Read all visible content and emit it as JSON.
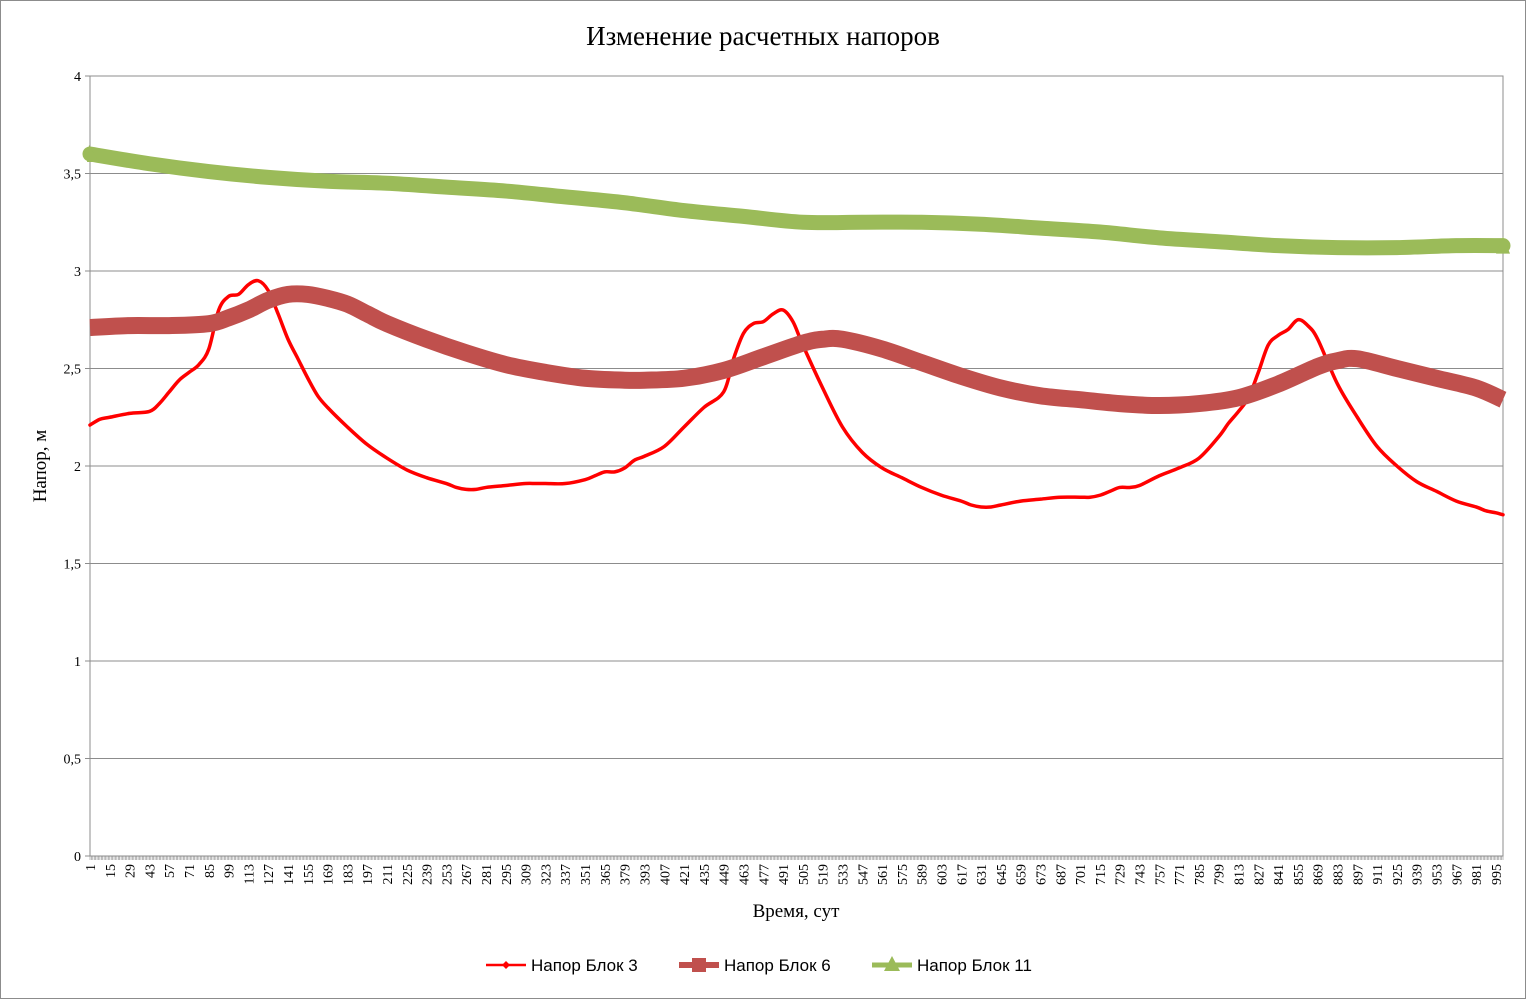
{
  "chart_data": {
    "type": "line",
    "title": "Изменение расчетных напоров",
    "xlabel": "Время, сут",
    "ylabel": "Напор, м",
    "ylim": [
      0,
      4
    ],
    "yticks": [
      0,
      0.5,
      1,
      1.5,
      2,
      2.5,
      3,
      3.5,
      4
    ],
    "ytick_labels": [
      "0",
      "0,5",
      "1",
      "1,5",
      "2",
      "2,5",
      "3",
      "3,5",
      "4"
    ],
    "xlim": [
      1,
      1000
    ],
    "x_label_start": 1,
    "x_label_step": 14,
    "x_label_count": 72,
    "grid": true,
    "legend_position": "bottom",
    "series": [
      {
        "name": "Напор Блок 3",
        "color": "#ff0000",
        "marker": "diamond",
        "x": [
          1,
          8,
          15,
          29,
          43,
          50,
          57,
          64,
          71,
          78,
          85,
          92,
          99,
          106,
          113,
          120,
          127,
          134,
          141,
          148,
          155,
          162,
          169,
          183,
          197,
          211,
          225,
          239,
          253,
          260,
          267,
          274,
          281,
          295,
          309,
          316,
          323,
          337,
          351,
          358,
          365,
          372,
          379,
          386,
          393,
          407,
          421,
          435,
          449,
          456,
          463,
          470,
          477,
          484,
          491,
          498,
          505,
          519,
          533,
          547,
          561,
          575,
          589,
          603,
          617,
          624,
          631,
          638,
          645,
          659,
          673,
          687,
          701,
          708,
          715,
          722,
          729,
          736,
          743,
          757,
          771,
          785,
          799,
          806,
          813,
          820,
          827,
          834,
          841,
          848,
          855,
          862,
          869,
          883,
          897,
          911,
          925,
          939,
          953,
          967,
          981,
          988,
          995,
          1000
        ],
        "y": [
          2.21,
          2.24,
          2.25,
          2.27,
          2.28,
          2.32,
          2.38,
          2.44,
          2.48,
          2.52,
          2.6,
          2.8,
          2.87,
          2.88,
          2.93,
          2.95,
          2.9,
          2.78,
          2.65,
          2.55,
          2.45,
          2.36,
          2.3,
          2.2,
          2.11,
          2.04,
          1.98,
          1.94,
          1.91,
          1.89,
          1.88,
          1.88,
          1.89,
          1.9,
          1.91,
          1.91,
          1.91,
          1.91,
          1.93,
          1.95,
          1.97,
          1.97,
          1.99,
          2.03,
          2.05,
          2.1,
          2.2,
          2.3,
          2.38,
          2.55,
          2.68,
          2.73,
          2.74,
          2.78,
          2.8,
          2.74,
          2.62,
          2.4,
          2.2,
          2.07,
          1.99,
          1.94,
          1.89,
          1.85,
          1.82,
          1.8,
          1.79,
          1.79,
          1.8,
          1.82,
          1.83,
          1.84,
          1.84,
          1.84,
          1.85,
          1.87,
          1.89,
          1.89,
          1.9,
          1.95,
          1.99,
          2.04,
          2.15,
          2.22,
          2.28,
          2.35,
          2.48,
          2.62,
          2.67,
          2.7,
          2.75,
          2.72,
          2.65,
          2.42,
          2.25,
          2.1,
          2.0,
          1.92,
          1.87,
          1.82,
          1.79,
          1.77,
          1.76,
          1.75
        ]
      },
      {
        "name": "Напор Блок 6",
        "color": "#c0504d",
        "marker": "square",
        "x": [
          1,
          29,
          57,
          85,
          99,
          113,
          127,
          141,
          155,
          169,
          183,
          197,
          211,
          239,
          267,
          295,
          323,
          351,
          379,
          393,
          421,
          449,
          477,
          505,
          519,
          533,
          561,
          589,
          617,
          645,
          673,
          701,
          729,
          757,
          785,
          813,
          841,
          869,
          883,
          897,
          925,
          953,
          981,
          1000
        ],
        "y": [
          2.71,
          2.72,
          2.72,
          2.73,
          2.76,
          2.8,
          2.85,
          2.88,
          2.88,
          2.86,
          2.83,
          2.78,
          2.73,
          2.65,
          2.58,
          2.52,
          2.48,
          2.45,
          2.44,
          2.44,
          2.45,
          2.49,
          2.56,
          2.63,
          2.65,
          2.65,
          2.6,
          2.53,
          2.46,
          2.4,
          2.36,
          2.34,
          2.32,
          2.31,
          2.32,
          2.35,
          2.42,
          2.51,
          2.54,
          2.55,
          2.5,
          2.45,
          2.4,
          2.34
        ]
      },
      {
        "name": "Напор Блок 11",
        "color": "#9bbb59",
        "marker": "triangle",
        "x": [
          1,
          43,
          85,
          127,
          169,
          211,
          253,
          295,
          337,
          379,
          421,
          463,
          505,
          547,
          589,
          631,
          673,
          715,
          757,
          799,
          841,
          883,
          925,
          967,
          1000
        ],
        "y": [
          3.6,
          3.55,
          3.51,
          3.48,
          3.46,
          3.45,
          3.43,
          3.41,
          3.38,
          3.35,
          3.31,
          3.28,
          3.25,
          3.25,
          3.25,
          3.24,
          3.22,
          3.2,
          3.17,
          3.15,
          3.13,
          3.12,
          3.12,
          3.13,
          3.13
        ]
      }
    ]
  }
}
